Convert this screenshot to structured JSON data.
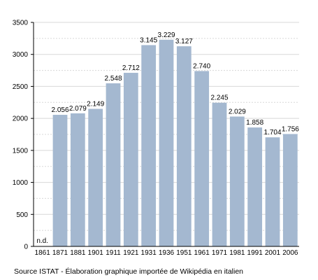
{
  "chart_data": {
    "type": "bar",
    "categories": [
      "1861",
      "1871",
      "1881",
      "1901",
      "1911",
      "1921",
      "1931",
      "1936",
      "1951",
      "1961",
      "1971",
      "1981",
      "1991",
      "2001",
      "2006"
    ],
    "values": [
      null,
      2056,
      2079,
      2149,
      2548,
      2712,
      3145,
      3229,
      3127,
      2740,
      2245,
      2029,
      1858,
      1704,
      1756
    ],
    "data_labels": [
      "n.d.",
      "2.056",
      "2.079",
      "2.149",
      "2.548",
      "2.712",
      "3.145",
      "3.229",
      "3.127",
      "2.740",
      "2.245",
      "2.029",
      "1.858",
      "1.704",
      "1.756"
    ],
    "ylim": [
      0,
      3500
    ],
    "yticks": [
      "0",
      "500",
      "1000",
      "1500",
      "2000",
      "2500",
      "3000",
      "3500"
    ],
    "grid": true,
    "bar_color": "#a4b8d0",
    "grid_color": "#d8d8d8"
  },
  "source": "Source ISTAT - Élaboration graphique importée de Wikipédia en italien"
}
